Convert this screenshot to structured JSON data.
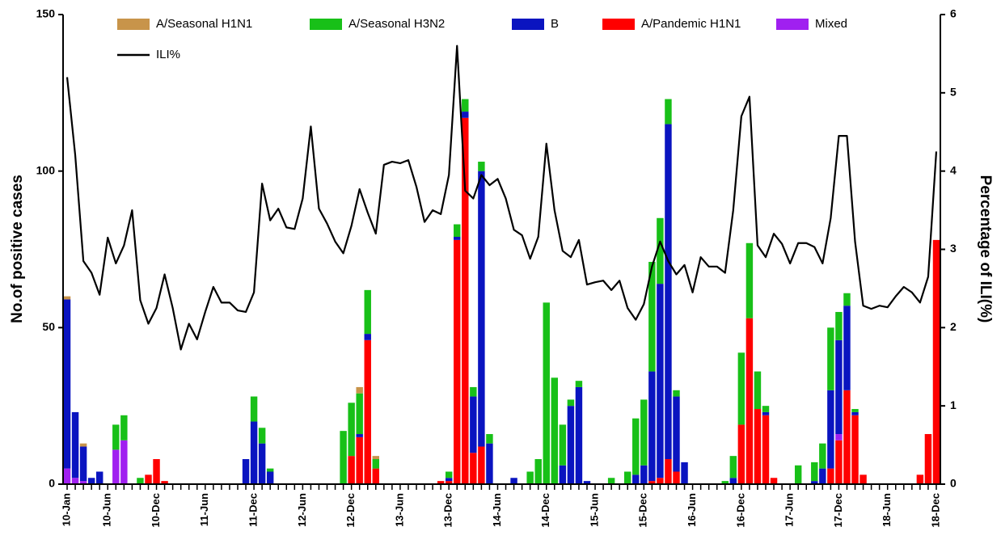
{
  "chart_data": {
    "type": "bar",
    "stacked": true,
    "y_label": "No.of positive cases",
    "y2_label": "Percentage of ILI(%)",
    "categories": [
      "10-Jan",
      null,
      null,
      null,
      null,
      "10-Jun",
      null,
      null,
      null,
      null,
      null,
      "10-Dec",
      null,
      null,
      null,
      null,
      null,
      "11-Jun",
      null,
      null,
      null,
      null,
      null,
      "11-Dec",
      null,
      null,
      null,
      null,
      null,
      "12-Jun",
      null,
      null,
      null,
      null,
      null,
      "12-Dec",
      null,
      null,
      null,
      null,
      null,
      "13-Jun",
      null,
      null,
      null,
      null,
      null,
      "13-Dec",
      null,
      null,
      null,
      null,
      null,
      "14-Jun",
      null,
      null,
      null,
      null,
      null,
      "14-Dec",
      null,
      null,
      null,
      null,
      null,
      "15-Jun",
      null,
      null,
      null,
      null,
      null,
      "15-Dec",
      null,
      null,
      null,
      null,
      null,
      "16-Jun",
      null,
      null,
      null,
      null,
      null,
      "16-Dec",
      null,
      null,
      null,
      null,
      null,
      "17-Jun",
      null,
      null,
      null,
      null,
      null,
      "17-Dec",
      null,
      null,
      null,
      null,
      null,
      "18-Jun",
      null,
      null,
      null,
      null,
      null,
      "18-Dec"
    ],
    "ylim": [
      0,
      150
    ],
    "yticks": [
      0,
      50,
      100,
      150
    ],
    "y2lim": [
      0,
      6
    ],
    "y2ticks": [
      0,
      1,
      2,
      3,
      4,
      5,
      6
    ],
    "series": [
      {
        "name": "A/Pandemic H1N1",
        "color": "#ff0000",
        "values": [
          0,
          0,
          0,
          0,
          0,
          0,
          0,
          0,
          0,
          0,
          3,
          8,
          1,
          0,
          0,
          0,
          0,
          0,
          0,
          0,
          0,
          0,
          0,
          0,
          0,
          0,
          0,
          0,
          0,
          0,
          0,
          0,
          0,
          0,
          0,
          9,
          15,
          46,
          5,
          0,
          0,
          0,
          0,
          0,
          0,
          0,
          1,
          1,
          78,
          117,
          10,
          12,
          0,
          0,
          0,
          0,
          0,
          0,
          0,
          0,
          0,
          0,
          0,
          0,
          0,
          0,
          0,
          0,
          0,
          0,
          0,
          0,
          1,
          2,
          8,
          4,
          0,
          0,
          0,
          0,
          0,
          0,
          0,
          19,
          53,
          24,
          22,
          2,
          0,
          0,
          0,
          0,
          0,
          0,
          5,
          14,
          30,
          22,
          3,
          0,
          0,
          0,
          0,
          0,
          0,
          3,
          16,
          78
        ]
      },
      {
        "name": "Mixed",
        "color": "#a020f0",
        "values": [
          5,
          2,
          1,
          0,
          0,
          0,
          11,
          14,
          0,
          0,
          0,
          0,
          0,
          0,
          0,
          0,
          0,
          0,
          0,
          0,
          0,
          0,
          0,
          0,
          0,
          0,
          0,
          0,
          0,
          0,
          0,
          0,
          0,
          0,
          0,
          0,
          0,
          0,
          0,
          0,
          0,
          0,
          0,
          0,
          0,
          0,
          0,
          0,
          0,
          0,
          0,
          0,
          0,
          0,
          0,
          0,
          0,
          0,
          0,
          0,
          0,
          0,
          0,
          0,
          0,
          0,
          0,
          0,
          0,
          0,
          0,
          0,
          0,
          0,
          0,
          0,
          0,
          0,
          0,
          0,
          0,
          0,
          0,
          0,
          0,
          0,
          0,
          0,
          0,
          0,
          0,
          0,
          0,
          0,
          0,
          2,
          0,
          0,
          0,
          0,
          0,
          0,
          0,
          0,
          0,
          0,
          0,
          0
        ]
      },
      {
        "name": "B",
        "color": "#0a14c0",
        "values": [
          54,
          21,
          11,
          2,
          4,
          0,
          0,
          0,
          0,
          0,
          0,
          0,
          0,
          0,
          0,
          0,
          0,
          0,
          0,
          0,
          0,
          0,
          8,
          20,
          13,
          4,
          0,
          0,
          0,
          0,
          0,
          0,
          0,
          0,
          0,
          0,
          1,
          2,
          0,
          0,
          0,
          0,
          0,
          0,
          0,
          0,
          0,
          1,
          1,
          2,
          18,
          88,
          13,
          0,
          0,
          2,
          0,
          0,
          0,
          0,
          0,
          6,
          25,
          31,
          1,
          0,
          0,
          0,
          0,
          0,
          3,
          6,
          35,
          62,
          107,
          24,
          7,
          0,
          0,
          0,
          0,
          0,
          2,
          0,
          0,
          0,
          1,
          0,
          0,
          0,
          0,
          0,
          1,
          5,
          25,
          30,
          27,
          1,
          0,
          0,
          0,
          0,
          0,
          0,
          0,
          0,
          0,
          0
        ]
      },
      {
        "name": "A/Seasonal H3N2",
        "color": "#18c018",
        "values": [
          0,
          0,
          0,
          0,
          0,
          0,
          8,
          8,
          0,
          2,
          0,
          0,
          0,
          0,
          0,
          0,
          0,
          0,
          0,
          0,
          0,
          0,
          0,
          8,
          5,
          1,
          0,
          0,
          0,
          0,
          0,
          0,
          0,
          0,
          17,
          17,
          13,
          14,
          3,
          0,
          0,
          0,
          0,
          0,
          0,
          0,
          0,
          2,
          4,
          4,
          3,
          3,
          3,
          0,
          0,
          0,
          0,
          4,
          8,
          58,
          34,
          13,
          2,
          2,
          0,
          0,
          0,
          2,
          0,
          4,
          18,
          21,
          35,
          21,
          8,
          2,
          0,
          0,
          0,
          0,
          0,
          1,
          7,
          23,
          24,
          12,
          2,
          0,
          0,
          0,
          6,
          0,
          6,
          8,
          20,
          9,
          4,
          1,
          0,
          0,
          0,
          0,
          0,
          0,
          0,
          0,
          0,
          0
        ]
      },
      {
        "name": "A/Seasonal H1N1",
        "color": "#c8944a",
        "values": [
          1,
          0,
          1,
          0,
          0,
          0,
          0,
          0,
          0,
          0,
          0,
          0,
          0,
          0,
          0,
          0,
          0,
          0,
          0,
          0,
          0,
          0,
          0,
          0,
          0,
          0,
          0,
          0,
          0,
          0,
          0,
          0,
          0,
          0,
          0,
          0,
          2,
          0,
          1,
          0,
          0,
          0,
          0,
          0,
          0,
          0,
          0,
          0,
          0,
          0,
          0,
          0,
          0,
          0,
          0,
          0,
          0,
          0,
          0,
          0,
          0,
          0,
          0,
          0,
          0,
          0,
          0,
          0,
          0,
          0,
          0,
          0,
          0,
          0,
          0,
          0,
          0,
          0,
          0,
          0,
          0,
          0,
          0,
          0,
          0,
          0,
          0,
          0,
          0,
          0,
          0,
          0,
          0,
          0,
          0,
          0,
          0,
          0,
          0,
          0,
          0,
          0,
          0,
          0,
          0,
          0,
          0,
          0
        ]
      },
      {
        "name": "ILI%",
        "type": "line",
        "axis": "y2",
        "color": "#000000",
        "values": [
          5.2,
          4.2,
          2.85,
          2.7,
          2.42,
          3.15,
          2.82,
          3.05,
          3.5,
          2.35,
          2.05,
          2.25,
          2.68,
          2.25,
          1.72,
          2.05,
          1.85,
          2.2,
          2.52,
          2.32,
          2.32,
          2.22,
          2.2,
          2.45,
          3.84,
          3.37,
          3.52,
          3.28,
          3.26,
          3.65,
          4.57,
          3.52,
          3.33,
          3.1,
          2.95,
          3.3,
          3.77,
          3.47,
          3.2,
          4.08,
          4.12,
          4.1,
          4.14,
          3.8,
          3.35,
          3.5,
          3.45,
          3.95,
          5.6,
          3.75,
          3.65,
          3.95,
          3.82,
          3.9,
          3.65,
          3.25,
          3.18,
          2.88,
          3.16,
          4.35,
          3.5,
          2.98,
          2.9,
          3.12,
          2.55,
          2.58,
          2.6,
          2.48,
          2.6,
          2.25,
          2.1,
          2.3,
          2.78,
          3.1,
          2.85,
          2.68,
          2.8,
          2.45,
          2.9,
          2.78,
          2.78,
          2.7,
          3.5,
          4.7,
          4.95,
          3.05,
          2.9,
          3.2,
          3.07,
          2.82,
          3.08,
          3.08,
          3.03,
          2.82,
          3.4,
          4.45,
          4.45,
          3.1,
          2.28,
          2.24,
          2.28,
          2.26,
          2.4,
          2.52,
          2.45,
          2.32,
          2.65,
          4.25
        ]
      }
    ],
    "legend_order": [
      4,
      3,
      2,
      0,
      1,
      5
    ]
  }
}
